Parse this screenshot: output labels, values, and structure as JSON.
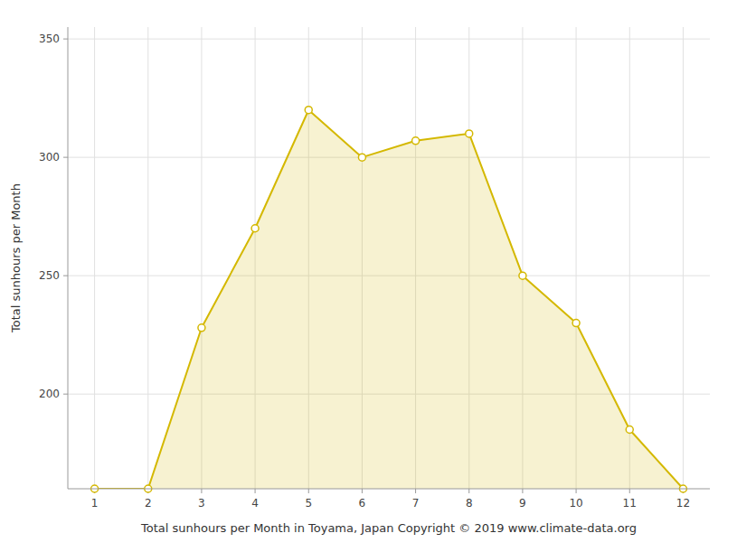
{
  "chart_data": {
    "type": "area",
    "x": [
      1,
      2,
      3,
      4,
      5,
      6,
      7,
      8,
      9,
      10,
      11,
      12
    ],
    "values": [
      160,
      160,
      228,
      270,
      320,
      300,
      307,
      310,
      250,
      230,
      185,
      160
    ],
    "color": "#D4B800",
    "marker": "circle",
    "xlabel": "Total sunhours per Month in Toyama, Japan Copyright © 2019 www.climate-data.org",
    "ylabel": "Total sunhours per Month",
    "xlim": [
      0.5,
      12.5
    ],
    "ylim": [
      160,
      355
    ],
    "xticks": [
      1,
      2,
      3,
      4,
      5,
      6,
      7,
      8,
      9,
      10,
      11,
      12
    ],
    "yticks": [
      200,
      250,
      300,
      350
    ],
    "grid": true
  }
}
